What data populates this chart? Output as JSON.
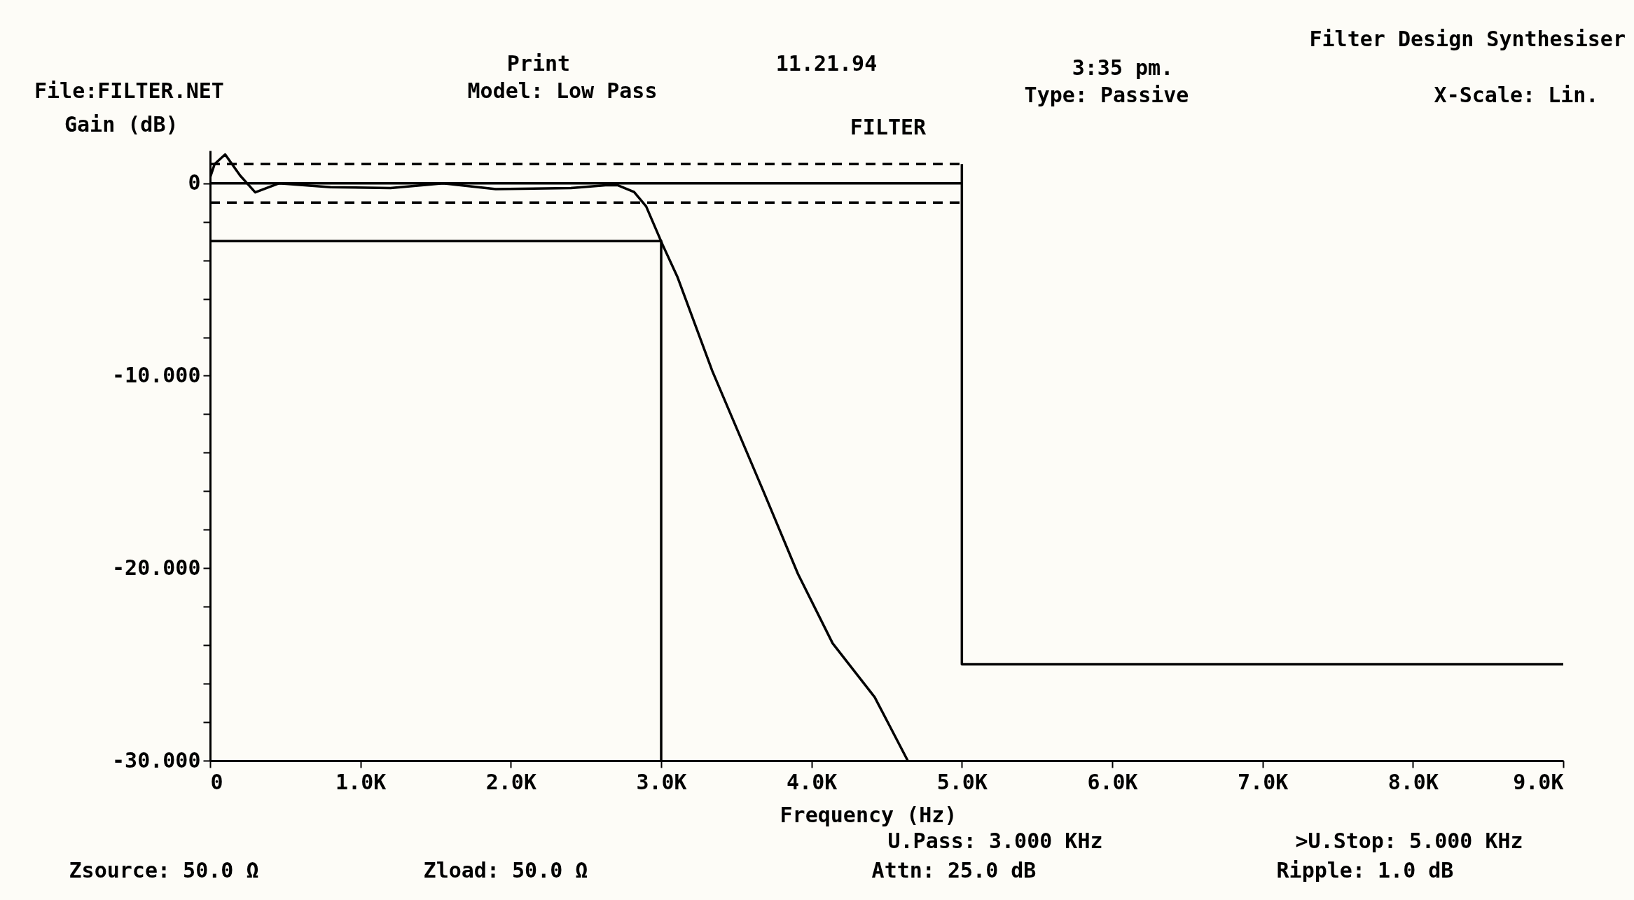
{
  "chart_data": {
    "type": "line",
    "title": "FILTER",
    "xlabel": "Frequency (Hz)",
    "ylabel": "Gain (dB)",
    "xlim": [
      0,
      9000
    ],
    "ylim": [
      -30,
      1.7
    ],
    "xticks": [
      {
        "value": 0,
        "label": "0"
      },
      {
        "value": 1000,
        "label": "1.0K"
      },
      {
        "value": 2000,
        "label": "2.0K"
      },
      {
        "value": 3000,
        "label": "3.0K"
      },
      {
        "value": 4000,
        "label": "4.0K"
      },
      {
        "value": 5000,
        "label": "5.0K"
      },
      {
        "value": 6000,
        "label": "6.0K"
      },
      {
        "value": 7000,
        "label": "7.0K"
      },
      {
        "value": 8000,
        "label": "8.0K"
      },
      {
        "value": 9000,
        "label": "9.0K"
      }
    ],
    "yticks": [
      {
        "value": -30,
        "label": "-30.000"
      },
      {
        "value": -28,
        "label": null
      },
      {
        "value": -26,
        "label": null
      },
      {
        "value": -24,
        "label": null
      },
      {
        "value": -22,
        "label": null
      },
      {
        "value": -20,
        "label": "-20.000"
      },
      {
        "value": -18,
        "label": null
      },
      {
        "value": -16,
        "label": null
      },
      {
        "value": -14,
        "label": null
      },
      {
        "value": -12,
        "label": null
      },
      {
        "value": -10,
        "label": "-10.000"
      },
      {
        "value": -8,
        "label": null
      },
      {
        "value": -6,
        "label": null
      },
      {
        "value": -4,
        "label": null
      },
      {
        "value": -2,
        "label": null
      },
      {
        "value": 0,
        "label": "0"
      }
    ],
    "grid": false,
    "series": [
      {
        "color": "#000000",
        "line_style": "solid",
        "x": [
          0,
          30,
          100,
          200,
          300,
          460,
          800,
          1200,
          1550,
          1900,
          2400,
          2630,
          2710,
          2820,
          2900,
          3010,
          3110,
          3340,
          3680,
          3910,
          4140,
          4420,
          4640
        ],
        "values": [
          0.3,
          1.0,
          1.5,
          0.4,
          -0.47,
          0,
          -0.2,
          -0.25,
          0,
          -0.3,
          -0.25,
          -0.1,
          -0.1,
          -0.45,
          -1.2,
          -3.2,
          -4.9,
          -9.75,
          -16.0,
          -20.3,
          -23.9,
          -26.7,
          -30.0
        ]
      },
      {
        "color": "#000000",
        "line_style": "dashed",
        "x": [
          0,
          5000
        ],
        "values": [
          1,
          1
        ]
      },
      {
        "color": "#000000",
        "line_style": "dashed",
        "x": [
          0,
          5000
        ],
        "values": [
          -1,
          -1
        ]
      },
      {
        "color": "#000000",
        "line_style": "solid",
        "x": [
          0,
          3000,
          3000
        ],
        "values": [
          -3,
          -3,
          -30
        ]
      },
      {
        "color": "#000000",
        "line_style": "solid",
        "x": [
          0,
          5000
        ],
        "values": [
          0,
          0
        ]
      },
      {
        "color": "#000000",
        "line_style": "solid",
        "x": [
          5000,
          5000,
          9000
        ],
        "values": [
          1,
          -25,
          -25
        ]
      }
    ],
    "annotations": [
      "Print",
      "11.21.94",
      "3:35 pm.",
      "Filter Design Synthesiser",
      "File:FILTER.NET",
      "Model: Low Pass",
      "Type: Passive",
      "X-Scale: Lin.",
      "U.Pass: 3.000 KHz",
      ">U.Stop: 5.000 KHz",
      "Zsource: 50.0 Ω",
      "Zload: 50.0 Ω",
      "Attn: 25.0 dB",
      "Ripple: 1.0 dB"
    ]
  }
}
